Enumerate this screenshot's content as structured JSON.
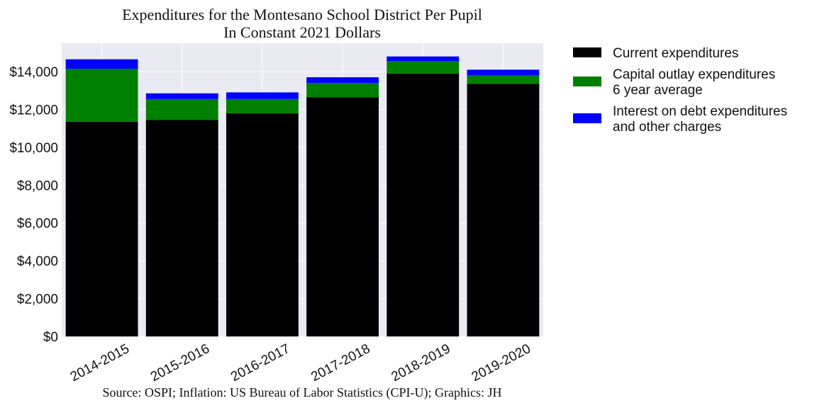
{
  "chart_data": {
    "type": "bar",
    "stacked": true,
    "title": "Expenditures for the Montesano School District Per Pupil",
    "subtitle": "In Constant 2021 Dollars",
    "source": "Source: OSPI; Inflation: US Bureau of Labor Statistics (CPI-U); Graphics: JH",
    "categories": [
      "2014-2015",
      "2015-2016",
      "2016-2017",
      "2017-2018",
      "2018-2019",
      "2019-2020"
    ],
    "series": [
      {
        "name": "Current expenditures",
        "color": "#000000",
        "values": [
          11350,
          11450,
          11800,
          12650,
          13900,
          13350
        ]
      },
      {
        "name": "Capital outlay expenditures\n6 year average",
        "color": "#008000",
        "values": [
          2800,
          1100,
          750,
          750,
          650,
          450
        ]
      },
      {
        "name": "Interest on debt expenditures\nand other charges",
        "color": "#0000ff",
        "values": [
          500,
          300,
          350,
          300,
          250,
          300
        ]
      }
    ],
    "ylim": [
      0,
      15500
    ],
    "yticks": [
      0,
      2000,
      4000,
      6000,
      8000,
      10000,
      12000,
      14000
    ],
    "ytick_labels": [
      "$0",
      "$2,000",
      "$4,000",
      "$6,000",
      "$8,000",
      "$10,000",
      "$12,000",
      "$14,000"
    ],
    "xlabel": "",
    "ylabel": "",
    "grid": true,
    "legend_position": "right"
  }
}
